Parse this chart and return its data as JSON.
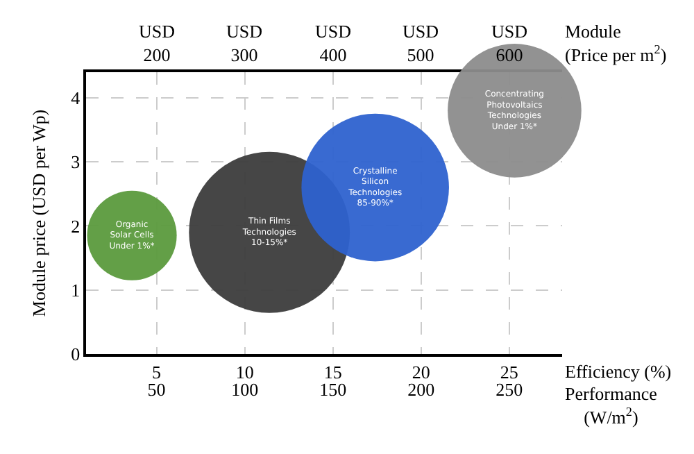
{
  "chart_data": {
    "type": "bubble",
    "series": [
      {
        "name": "Organic\nSolar Cells\nUnder 1%*",
        "color": "#5b9a3d",
        "x": [
          3.6
        ],
        "values": [
          1.85
        ],
        "sizes": [
          0.31
        ]
      },
      {
        "name": "Thin Films\nTechnologies\n10-15%*",
        "color": "#3c3c3c",
        "x": [
          11.4
        ],
        "values": [
          1.9
        ],
        "sizes": [
          1
        ]
      },
      {
        "name": "Crystalline\nSilicon\nTechnologies\n85-90%*",
        "color": "#2e62cf",
        "x": [
          17.4
        ],
        "values": [
          2.6
        ],
        "sizes": [
          0.84
        ]
      },
      {
        "name": "Concentrating\nPhotovoltaics\nTechnologies\nUnder 1%*",
        "color": "#8c8c8c",
        "x": [
          25.3
        ],
        "values": [
          3.8
        ],
        "sizes": [
          0.69
        ]
      }
    ],
    "xlabel": "Efficiency (%)",
    "x2label": "Performance\n(W/m$^{2}$)",
    "ylabel": "Module price (USD per Wp)",
    "xlim": [
      1,
      28
    ],
    "ylim": [
      0,
      4.4
    ],
    "xticks": [
      5,
      10,
      15,
      20,
      25
    ],
    "x2lim": [
      10,
      280
    ],
    "x2ticks": [
      50,
      100,
      150,
      200,
      250
    ],
    "yticks": [
      0,
      1,
      2,
      3,
      4
    ],
    "annotations": [
      "USD\n200",
      "USD\n300",
      "USD\n400",
      "USD\n500",
      "USD\n600",
      "Module\n(Price per m$^{2}$)"
    ],
    "grid": true,
    "legend": false
  }
}
